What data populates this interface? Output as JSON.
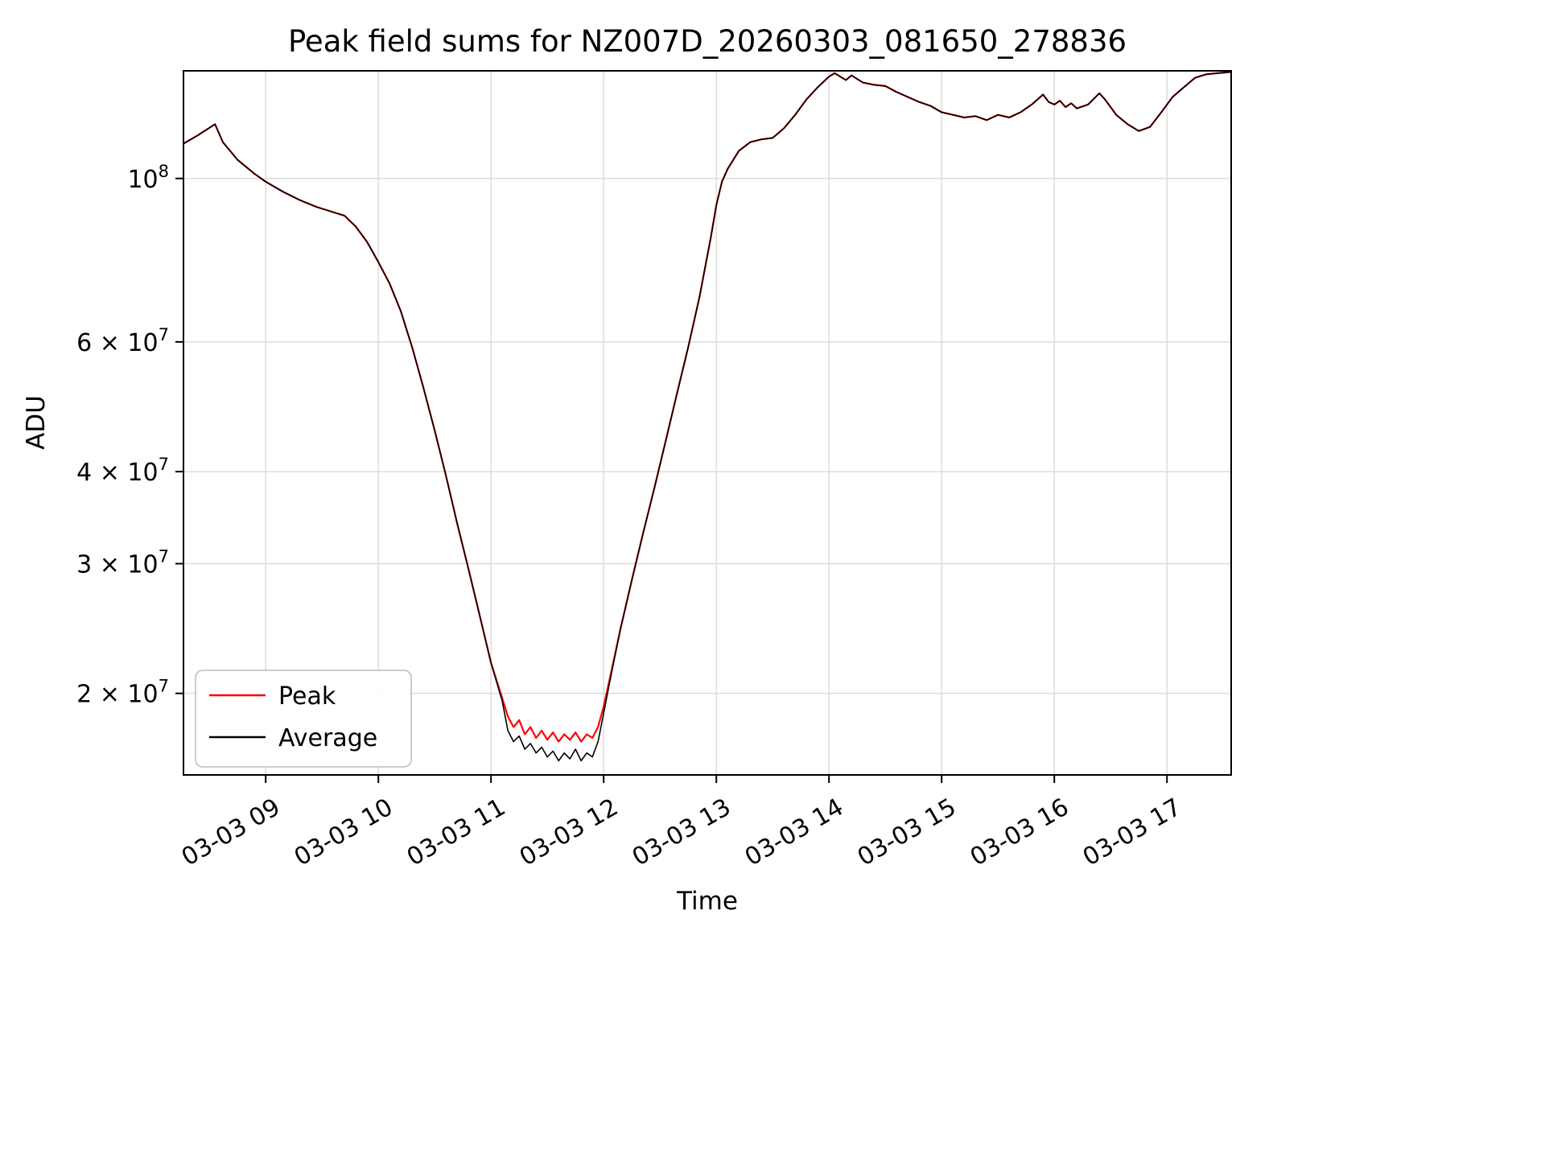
{
  "page": {
    "background": "#ffffff"
  },
  "chart_data": {
    "type": "line",
    "title": "Peak field sums for NZ007D_20260303_081650_278836",
    "xlabel": "Time",
    "ylabel": "ADU",
    "y_scale": "log",
    "grid": true,
    "grid_color": "#dcdcdc",
    "legend_position": "lower-left",
    "x_domain": [
      8.27,
      17.57
    ],
    "y_domain": [
      15500000.0,
      140000000.0
    ],
    "x_ticks": [
      {
        "value": 9,
        "label": "03-03 09"
      },
      {
        "value": 10,
        "label": "03-03 10"
      },
      {
        "value": 11,
        "label": "03-03 11"
      },
      {
        "value": 12,
        "label": "03-03 12"
      },
      {
        "value": 13,
        "label": "03-03 13"
      },
      {
        "value": 14,
        "label": "03-03 14"
      },
      {
        "value": 15,
        "label": "03-03 15"
      },
      {
        "value": 16,
        "label": "03-03 16"
      },
      {
        "value": 17,
        "label": "03-03 17"
      }
    ],
    "y_ticks": [
      {
        "value": 20000000.0,
        "mantissa": "2 × 10",
        "exponent": "7"
      },
      {
        "value": 30000000.0,
        "mantissa": "3 × 10",
        "exponent": "7"
      },
      {
        "value": 40000000.0,
        "mantissa": "4 × 10",
        "exponent": "7"
      },
      {
        "value": 60000000.0,
        "mantissa": "6 × 10",
        "exponent": "7"
      },
      {
        "value": 100000000.0,
        "mantissa": "10",
        "exponent": "8"
      }
    ],
    "x": [
      8.27,
      8.4,
      8.55,
      8.62,
      8.75,
      8.9,
      9.0,
      9.15,
      9.3,
      9.45,
      9.55,
      9.7,
      9.8,
      9.9,
      10.0,
      10.1,
      10.2,
      10.3,
      10.4,
      10.5,
      10.6,
      10.7,
      10.8,
      10.9,
      11.0,
      11.1,
      11.15,
      11.2,
      11.25,
      11.3,
      11.35,
      11.4,
      11.45,
      11.5,
      11.55,
      11.6,
      11.65,
      11.7,
      11.75,
      11.8,
      11.85,
      11.9,
      11.95,
      12.0,
      12.05,
      12.15,
      12.25,
      12.35,
      12.45,
      12.55,
      12.65,
      12.75,
      12.85,
      12.95,
      13.0,
      13.05,
      13.1,
      13.2,
      13.3,
      13.4,
      13.5,
      13.6,
      13.7,
      13.8,
      13.9,
      14.0,
      14.05,
      14.15,
      14.2,
      14.3,
      14.4,
      14.5,
      14.6,
      14.7,
      14.8,
      14.9,
      15.0,
      15.1,
      15.2,
      15.3,
      15.4,
      15.5,
      15.6,
      15.7,
      15.8,
      15.9,
      15.95,
      16.0,
      16.05,
      16.1,
      16.15,
      16.2,
      16.3,
      16.4,
      16.45,
      16.55,
      16.65,
      16.75,
      16.85,
      16.95,
      17.05,
      17.15,
      17.25,
      17.35,
      17.45,
      17.57
    ],
    "series": [
      {
        "name": "Peak",
        "color": "#ff0000",
        "values": [
          111500000.0,
          114500000.0,
          118500000.0,
          112000000.0,
          106000000.0,
          101500000.0,
          99000000.0,
          96000000.0,
          93500000.0,
          91500000.0,
          90500000.0,
          89000000.0,
          86000000.0,
          82000000.0,
          77000000.0,
          72000000.0,
          66000000.0,
          59000000.0,
          52000000.0,
          45500000.0,
          39500000.0,
          34000000.0,
          29500000.0,
          25500000.0,
          22000000.0,
          19700000.0,
          18600000.0,
          18000000.0,
          18400000.0,
          17600000.0,
          18000000.0,
          17400000.0,
          17800000.0,
          17300000.0,
          17700000.0,
          17200000.0,
          17600000.0,
          17300000.0,
          17700000.0,
          17200000.0,
          17600000.0,
          17400000.0,
          18000000.0,
          19200000.0,
          20800000.0,
          24500000.0,
          28500000.0,
          33000000.0,
          38000000.0,
          44000000.0,
          51000000.0,
          59000000.0,
          69000000.0,
          83000000.0,
          92000000.0,
          99000000.0,
          103000000.0,
          109000000.0,
          112000000.0,
          113000000.0,
          113500000.0,
          117000000.0,
          122000000.0,
          128000000.0,
          133000000.0,
          137500000.0,
          139000000.0,
          136000000.0,
          138000000.0,
          135000000.0,
          134000000.0,
          133500000.0,
          131000000.0,
          129000000.0,
          127000000.0,
          125500000.0,
          123000000.0,
          122000000.0,
          121000000.0,
          121500000.0,
          120000000.0,
          122000000.0,
          121000000.0,
          123000000.0,
          126000000.0,
          130000000.0,
          127000000.0,
          126000000.0,
          127500000.0,
          125000000.0,
          126500000.0,
          124500000.0,
          126000000.0,
          130500000.0,
          128000000.0,
          122000000.0,
          118500000.0,
          116000000.0,
          117500000.0,
          123000000.0,
          129000000.0,
          133000000.0,
          137000000.0,
          138500000.0,
          139000000.0,
          139500000.0
        ]
      },
      {
        "name": "Average",
        "color": "#000000",
        "values": [
          111500000.0,
          114500000.0,
          118500000.0,
          112000000.0,
          106000000.0,
          101500000.0,
          99000000.0,
          96000000.0,
          93500000.0,
          91500000.0,
          90500000.0,
          89000000.0,
          86000000.0,
          82000000.0,
          77000000.0,
          72000000.0,
          66000000.0,
          59000000.0,
          52000000.0,
          45500000.0,
          39500000.0,
          34000000.0,
          29500000.0,
          25500000.0,
          22000000.0,
          19500000.0,
          17800000.0,
          17200000.0,
          17500000.0,
          16800000.0,
          17100000.0,
          16600000.0,
          16900000.0,
          16400000.0,
          16700000.0,
          16200000.0,
          16600000.0,
          16300000.0,
          16800000.0,
          16200000.0,
          16600000.0,
          16400000.0,
          17200000.0,
          18800000.0,
          20600000.0,
          24500000.0,
          28500000.0,
          33000000.0,
          38000000.0,
          44000000.0,
          51000000.0,
          59000000.0,
          69000000.0,
          83000000.0,
          92000000.0,
          99000000.0,
          103000000.0,
          109000000.0,
          112000000.0,
          113000000.0,
          113500000.0,
          117000000.0,
          122000000.0,
          128000000.0,
          133000000.0,
          137500000.0,
          139000000.0,
          136000000.0,
          138000000.0,
          135000000.0,
          134000000.0,
          133500000.0,
          131000000.0,
          129000000.0,
          127000000.0,
          125500000.0,
          123000000.0,
          122000000.0,
          121000000.0,
          121500000.0,
          120000000.0,
          122000000.0,
          121000000.0,
          123000000.0,
          126000000.0,
          130000000.0,
          127000000.0,
          126000000.0,
          127500000.0,
          125000000.0,
          126500000.0,
          124500000.0,
          126000000.0,
          130500000.0,
          128000000.0,
          122000000.0,
          118500000.0,
          116000000.0,
          117500000.0,
          123000000.0,
          129000000.0,
          133000000.0,
          137000000.0,
          138500000.0,
          139000000.0,
          139500000.0
        ]
      }
    ]
  }
}
